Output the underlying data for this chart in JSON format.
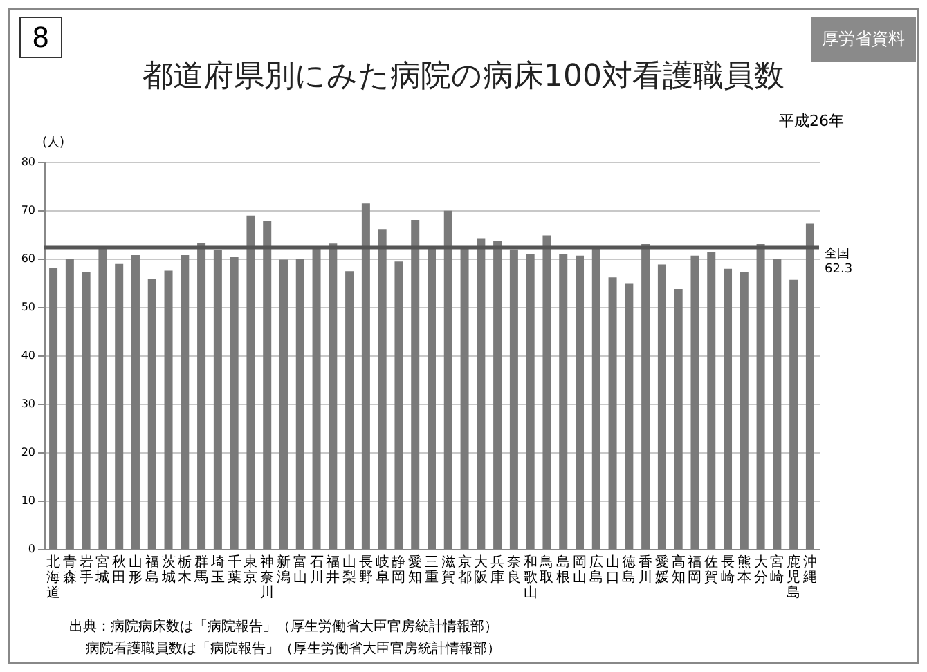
{
  "chart_data": {
    "type": "bar",
    "title": "都道府県別にみた病院の病床100対看護職員数",
    "ylabel": "(人)",
    "annotations": [
      "8",
      "厚労省資料",
      "平成26年",
      "出典：病院病床数は「病院報告」（厚生労働省大臣官房統計情報部）",
      "病院看護職員数は「病院報告」（厚生労働省大臣官房統計情報部）"
    ],
    "categories": [
      "北海道",
      "青森",
      "岩手",
      "宮城",
      "秋田",
      "山形",
      "福島",
      "茨城",
      "栃木",
      "群馬",
      "埼玉",
      "千葉",
      "東京",
      "神奈川",
      "新潟",
      "富山",
      "石川",
      "福井",
      "山梨",
      "長野",
      "岐阜",
      "静岡",
      "愛知",
      "三重",
      "滋賀",
      "京都",
      "大阪",
      "兵庫",
      "奈良",
      "和歌山",
      "鳥取",
      "島根",
      "岡山",
      "広島",
      "山口",
      "徳島",
      "香川",
      "愛媛",
      "高知",
      "福岡",
      "佐賀",
      "長崎",
      "熊本",
      "大分",
      "宮崎",
      "鹿児島",
      "沖縄"
    ],
    "values": [
      58.1,
      60.0,
      57.3,
      62.1,
      58.9,
      60.7,
      55.7,
      57.5,
      60.7,
      63.3,
      61.8,
      60.3,
      68.9,
      67.7,
      59.8,
      59.9,
      62.0,
      63.1,
      57.4,
      71.4,
      66.1,
      59.4,
      68.0,
      62.0,
      69.9,
      62.0,
      64.2,
      63.6,
      61.9,
      60.9,
      64.8,
      61.0,
      60.6,
      62.1,
      56.1,
      54.8,
      63.0,
      58.8,
      53.7,
      60.6,
      61.3,
      57.9,
      57.3,
      63.0,
      59.9,
      55.6,
      67.2
    ],
    "color": "#7a7a7a",
    "ylim": [
      0,
      80
    ],
    "yticks": [
      0,
      10,
      20,
      30,
      40,
      50,
      60,
      70,
      80
    ],
    "grid": "y",
    "ref_lines": [
      {
        "axis": "y",
        "value": 62.3,
        "label": "全国\n62.3",
        "color": "#555555"
      }
    ]
  }
}
